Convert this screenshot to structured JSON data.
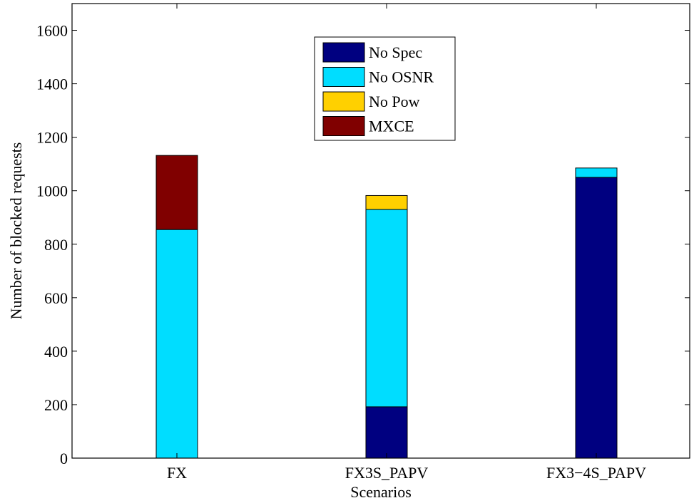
{
  "chart_data": {
    "type": "bar",
    "stacked": true,
    "title": "",
    "xlabel": "Scenarios",
    "ylabel": "Number of  blocked requests",
    "categories": [
      "FX",
      "FX3S_PAPV",
      "FX3−4S_PAPV"
    ],
    "ylim": [
      0,
      1700
    ],
    "yticks": [
      0,
      200,
      400,
      600,
      800,
      1000,
      1200,
      1400,
      1600
    ],
    "grid": false,
    "legend_position": "top-center",
    "series": [
      {
        "name": "No Spec",
        "color": "#000080",
        "values": [
          0,
          192,
          1050
        ]
      },
      {
        "name": "No OSNR",
        "color": "#00DDFF",
        "values": [
          855,
          738,
          35
        ]
      },
      {
        "name": "No Pow",
        "color": "#FFD000",
        "values": [
          0,
          52,
          0
        ]
      },
      {
        "name": "MXCE",
        "color": "#800000",
        "values": [
          277,
          0,
          0
        ]
      }
    ]
  }
}
